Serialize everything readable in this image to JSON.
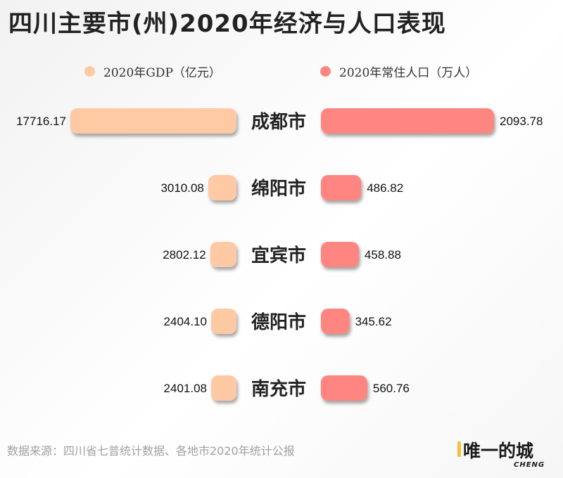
{
  "title": "四川主要市(州)2020年经济与人口表现",
  "source": "数据来源：四川省七普统计数据、各地市2020年统计公报",
  "logo": {
    "text": "唯一的城",
    "sub": "CHENG",
    "accent": "#f3c23b"
  },
  "colors": {
    "gdp": "#ffc9a3",
    "pop": "#ff8580"
  },
  "chart_data": {
    "type": "bar",
    "categories": [
      "成都市",
      "绵阳市",
      "宜宾市",
      "德阳市",
      "南充市"
    ],
    "series": [
      {
        "name": "2020年GDP（亿元）",
        "values": [
          "17716.17",
          "3010.08",
          "2802.12",
          "2404.10",
          "2401.08"
        ]
      },
      {
        "name": "2020年常住人口（万人）",
        "values": [
          "2093.78",
          "486.82",
          "458.88",
          "345.62",
          "560.76"
        ]
      }
    ],
    "legend": "top"
  }
}
